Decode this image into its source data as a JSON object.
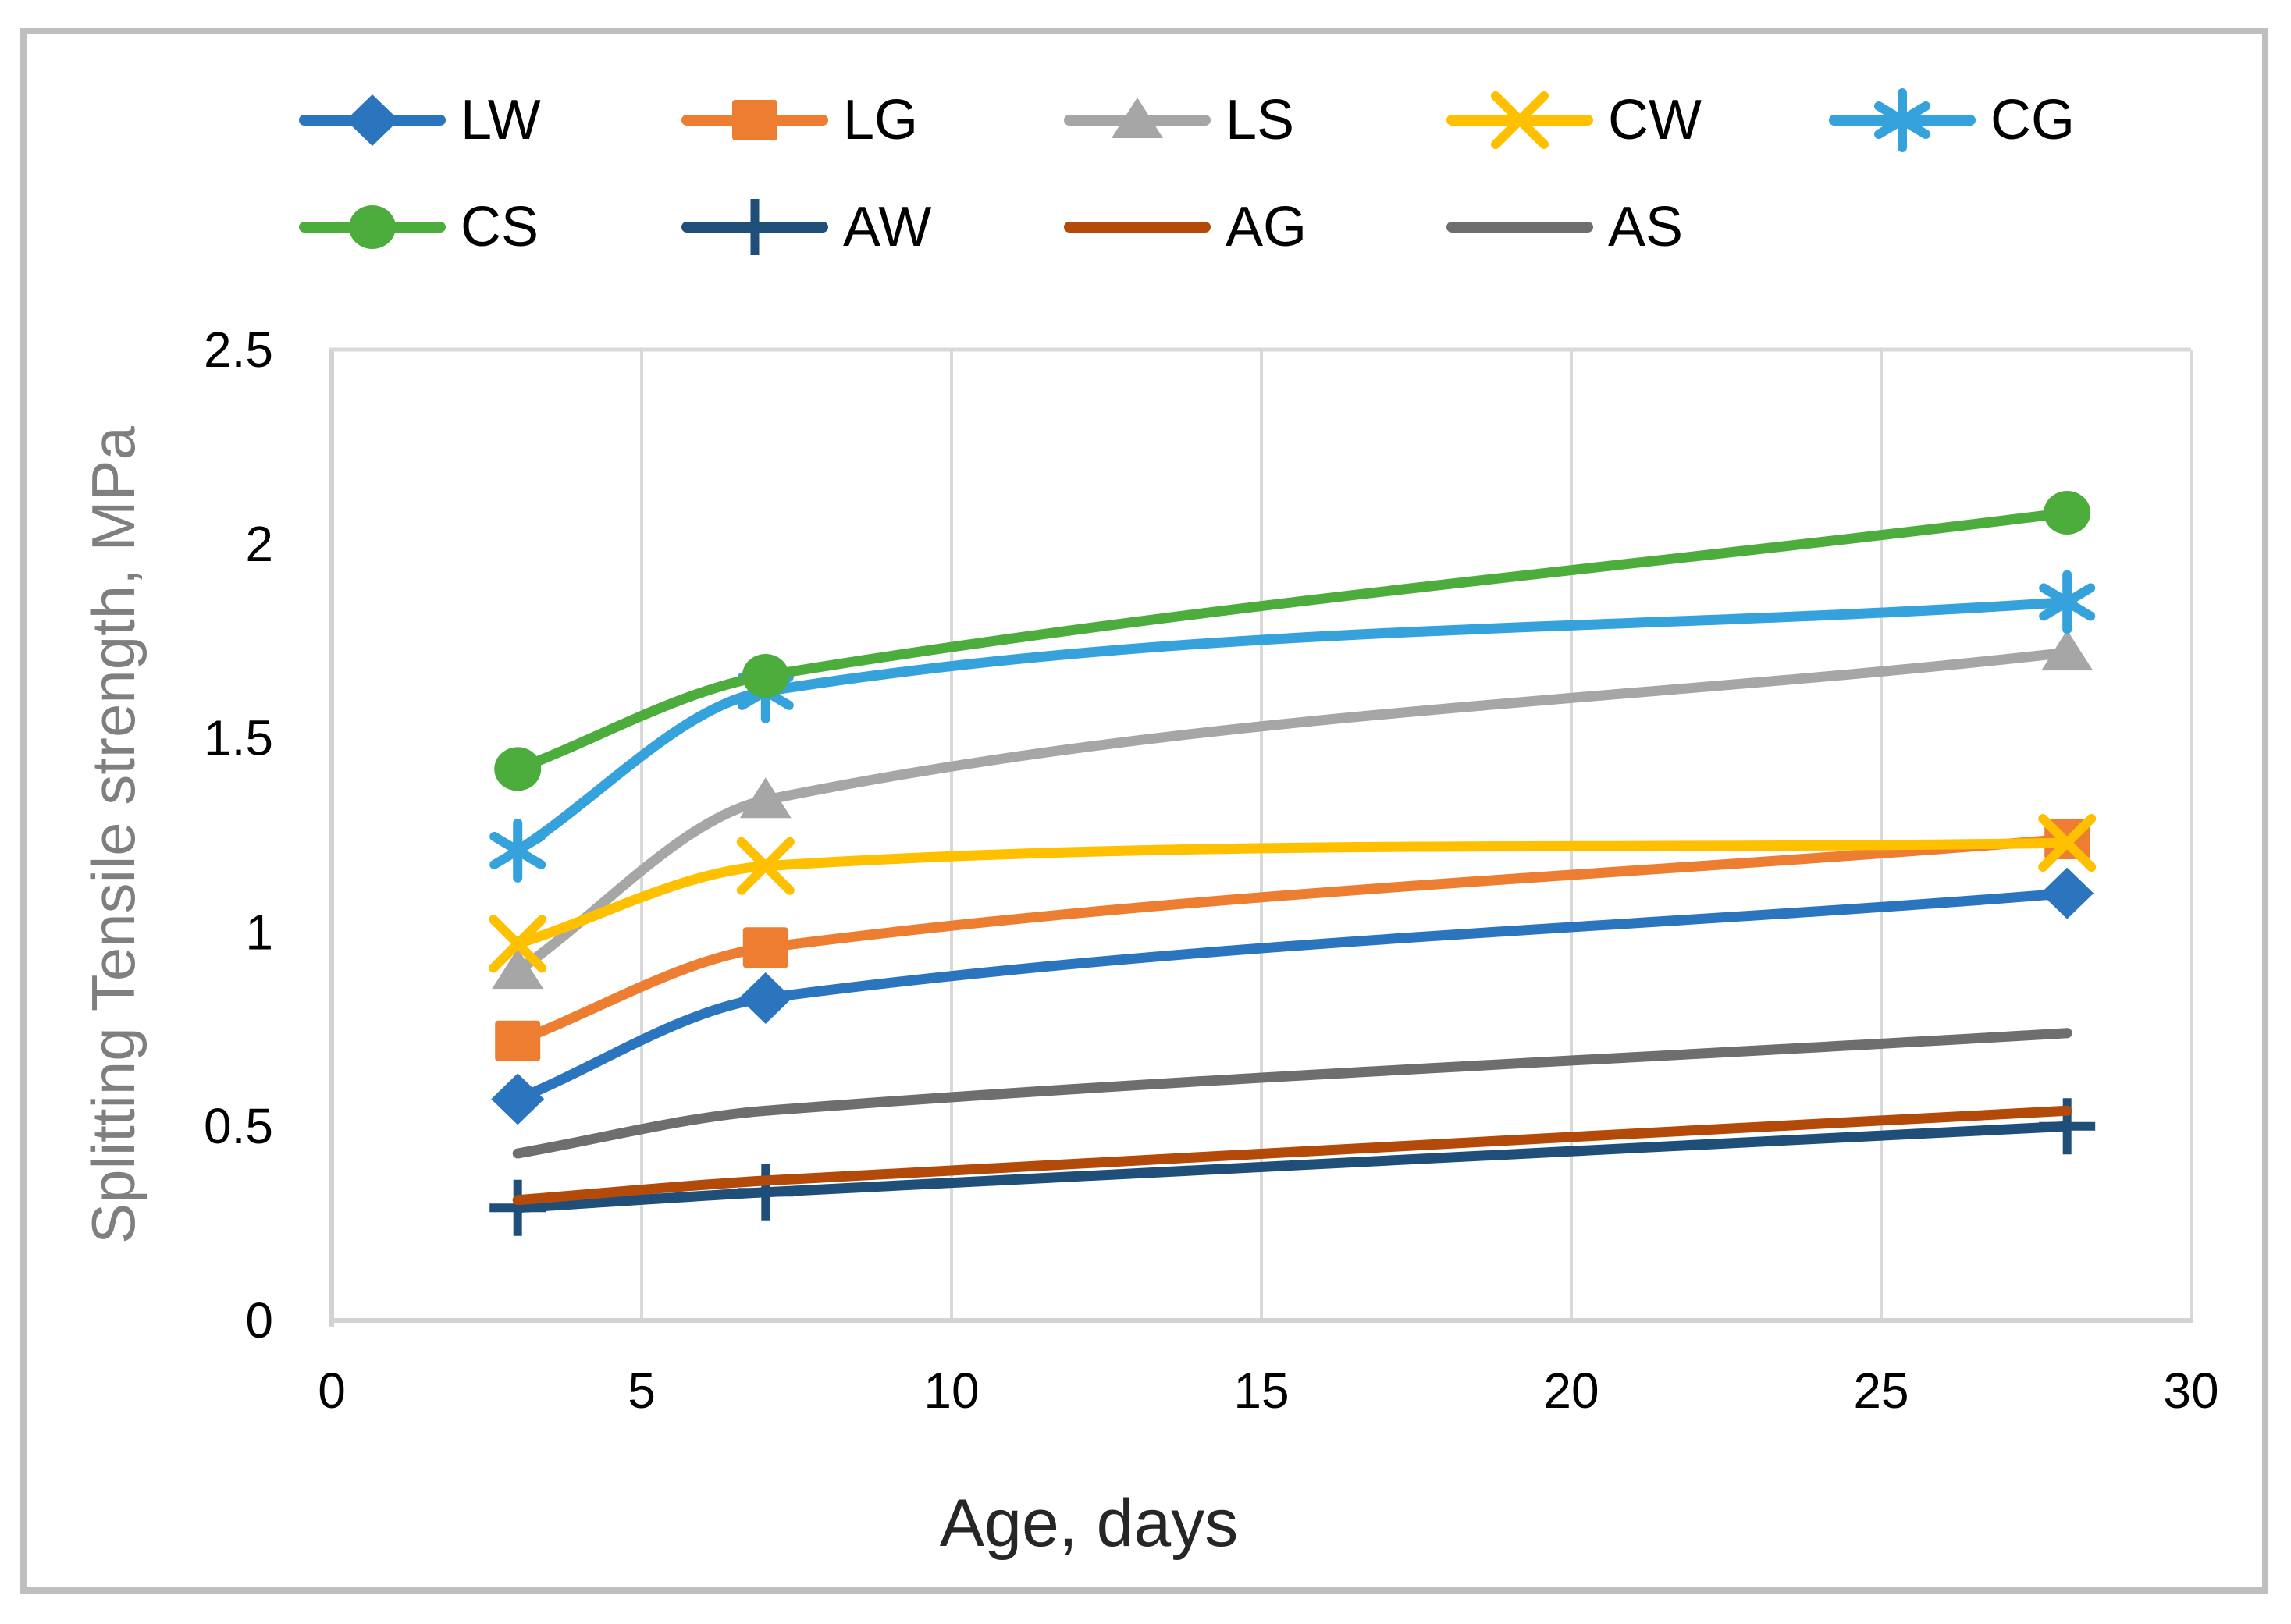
{
  "figure": {
    "border_color": "#BFBFBF",
    "background_color": "#FFFFFF"
  },
  "chart_data": {
    "type": "line",
    "title": "",
    "xlabel": "Age, days",
    "ylabel": "Splitting Tensile strength, MPa",
    "x": [
      3,
      7,
      28
    ],
    "xlim": [
      0,
      30
    ],
    "ylim": [
      0,
      2.5
    ],
    "x_ticks": [
      0,
      5,
      10,
      15,
      20,
      25,
      30
    ],
    "x_tick_labels": [
      "0",
      "5",
      "10",
      "15",
      "20",
      "25",
      "30"
    ],
    "y_ticks": [
      0,
      0.5,
      1,
      1.5,
      2,
      2.5
    ],
    "y_tick_labels": [
      "0",
      "0.5",
      "1",
      "1.5",
      "2",
      "2.5"
    ],
    "grid": "vertical-only",
    "legend_position": "top",
    "line_style": "smooth",
    "series": [
      {
        "name": "LW",
        "color": "#2B74BE",
        "marker": "diamond",
        "values": [
          0.57,
          0.83,
          1.1
        ]
      },
      {
        "name": "LG",
        "color": "#ED7D31",
        "marker": "square",
        "values": [
          0.72,
          0.96,
          1.24
        ]
      },
      {
        "name": "LS",
        "color": "#A6A6A6",
        "marker": "triangle",
        "values": [
          0.9,
          1.34,
          1.72
        ]
      },
      {
        "name": "CW",
        "color": "#FFC000",
        "marker": "x",
        "values": [
          0.97,
          1.17,
          1.23
        ]
      },
      {
        "name": "CG",
        "color": "#35A2DC",
        "marker": "asterisk",
        "values": [
          1.21,
          1.62,
          1.85
        ]
      },
      {
        "name": "CS",
        "color": "#4CAD3C",
        "marker": "circle",
        "values": [
          1.42,
          1.66,
          2.08
        ]
      },
      {
        "name": "AW",
        "color": "#1F4E79",
        "marker": "plus",
        "values": [
          0.29,
          0.33,
          0.5
        ]
      },
      {
        "name": "AG",
        "color": "#B44A0A",
        "marker": "none",
        "values": [
          0.31,
          0.36,
          0.54
        ]
      },
      {
        "name": "AS",
        "color": "#6E6E6E",
        "marker": "none",
        "values": [
          0.43,
          0.54,
          0.74
        ]
      }
    ],
    "legend_rows": [
      [
        "LW",
        "LG",
        "LS",
        "CW",
        "CG"
      ],
      [
        "CS",
        "AW",
        "AG",
        "AS"
      ]
    ]
  },
  "styles": {
    "grid_color": "#D9D9D9",
    "axis_line_color": "#D3D3D3",
    "tick_label_color": "#000000",
    "x_title_color": "#262626",
    "y_title_color": "#7F7F7F",
    "legend_label_color": "#000000"
  }
}
